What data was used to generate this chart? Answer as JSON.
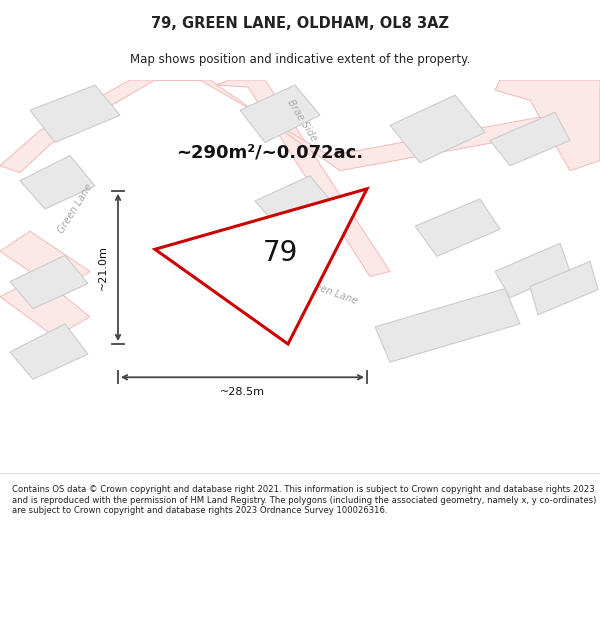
{
  "title": "79, GREEN LANE, OLDHAM, OL8 3AZ",
  "subtitle": "Map shows position and indicative extent of the property.",
  "footer": "Contains OS data © Crown copyright and database right 2021. This information is subject to Crown copyright and database rights 2023 and is reproduced with the permission of HM Land Registry. The polygons (including the associated geometry, namely x, y co-ordinates) are subject to Crown copyright and database rights 2023 Ordnance Survey 100026316.",
  "title_color": "#222222",
  "footer_color": "#222222",
  "area_label": "~290m²/~0.072ac.",
  "plot_number": "79",
  "dim_width": "~28.5m",
  "dim_height": "~21.0m",
  "road_color": "#f5b8b8",
  "road_fill": "#fde8e8",
  "bld_fill": "#e8e8e8",
  "bld_edge": "#cccccc",
  "main_fill": "#ffffff",
  "main_edge": "#cc0000",
  "road_label_color": "#aaaaaa",
  "map_bg": "#f7f7f7"
}
